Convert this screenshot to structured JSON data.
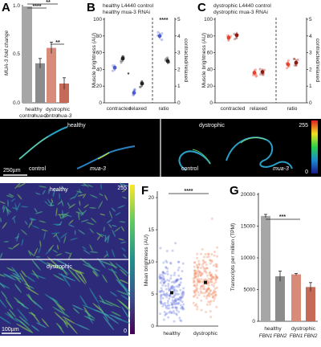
{
  "panels": {
    "A": {
      "label": "A",
      "ylabel": "MUA-3 fold change",
      "yticks": [
        "0.0",
        "0.5",
        "1.0"
      ],
      "groups": [
        "healthy",
        "dystrophic"
      ],
      "conditions": [
        "control",
        "mua-3",
        "control",
        "mua-3"
      ],
      "sig": [
        "****",
        "**",
        "**"
      ],
      "chart_data": {
        "type": "bar",
        "categories": [
          "healthy control",
          "healthy mua-3",
          "dystrophic control",
          "dystrophic mua-3"
        ],
        "values": [
          1.0,
          0.41,
          0.57,
          0.2
        ],
        "errors": [
          0.0,
          0.05,
          0.06,
          0.06
        ],
        "ylim": [
          0,
          1.0
        ],
        "colors": [
          "#a6a6a6",
          "#8c8c8c",
          "#d98b7a",
          "#c56a56"
        ]
      }
    },
    "B": {
      "label": "B",
      "legend": [
        "healthy L4440 control",
        "healthy mua-3 RNAi"
      ],
      "legend_colors": [
        "#4a5bd0",
        "#222222"
      ],
      "ylabel_left": "Muscle brightness (AU)",
      "ylabel_right": "contracted/relaxed",
      "yticks_left": [
        "0",
        "20",
        "40",
        "60",
        "80",
        "100"
      ],
      "yticks_right": [
        "0",
        "1",
        "2",
        "3",
        "4",
        "5"
      ],
      "xcats": [
        "contracted",
        "relaxed",
        "ratio"
      ],
      "sig": [
        "*",
        "****"
      ],
      "chart_data": {
        "type": "scatter",
        "series": [
          {
            "name": "healthy L4440 control",
            "values": [
              42,
              12,
              4.0
            ]
          },
          {
            "name": "healthy mua-3 RNAi",
            "values": [
              53,
              23,
              2.5
            ]
          }
        ]
      }
    },
    "C": {
      "label": "C",
      "legend": [
        "dystrophic L4440 control",
        "dystrophic mua-3 RNAi"
      ],
      "legend_colors": [
        "#e8402a",
        "#8b1a10"
      ],
      "ylabel_left": "Muscle brightness (AU)",
      "ylabel_right": "contracted/relaxed",
      "yticks_left": [
        "0",
        "20",
        "40",
        "60",
        "80",
        "100"
      ],
      "yticks_right": [
        "0",
        "1",
        "2",
        "3",
        "4",
        "5"
      ],
      "xcats": [
        "contracted",
        "relaxed",
        "ratio"
      ],
      "chart_data": {
        "type": "scatter",
        "series": [
          {
            "name": "dystrophic L4440 control",
            "values": [
              78,
              36,
              2.3
            ]
          },
          {
            "name": "dystrophic mua-3 RNAi",
            "values": [
              81,
              37,
              2.4
            ]
          }
        ]
      }
    },
    "D": {
      "label": "D",
      "tag_left": "healthy",
      "tag_right": "dystrophic",
      "sub1": "control",
      "sub2": "mua-3",
      "sub3": "control",
      "sub4": "mua-3",
      "scalebar": "250µm",
      "cbar_max": "255",
      "cbar_min": "0"
    },
    "E": {
      "label": "E",
      "tag_top": "healthy",
      "tag_bottom": "dystrophic",
      "scalebar": "100µm",
      "cbar_max": "255",
      "cbar_min": "0"
    },
    "F": {
      "label": "F",
      "ylabel": "Mean brightness (AU)",
      "yticks": [
        "0",
        "5",
        "10",
        "15",
        "20"
      ],
      "xcats": [
        "healthy",
        "dystrophic"
      ],
      "sig": "****",
      "chart_data": {
        "type": "scatter",
        "categories": [
          "healthy",
          "dystrophic"
        ],
        "values": [
          5.2,
          6.8
        ],
        "ylim": [
          0,
          20
        ]
      }
    },
    "G": {
      "label": "G",
      "ylabel": "Transcripts per million (TPM)",
      "yticks": [
        "0",
        "5000",
        "10000",
        "15000",
        "20000"
      ],
      "groups": [
        "healthy",
        "dystrophic"
      ],
      "genes": [
        "FBN1",
        "FBN2",
        "FBN1",
        "FBN2"
      ],
      "sig": "***",
      "chart_data": {
        "type": "bar",
        "categories": [
          "healthy FBN1",
          "healthy FBN2",
          "dystrophic FBN1",
          "dystrophic FBN2"
        ],
        "values": [
          16600,
          7100,
          7400,
          5400
        ],
        "errors": [
          250,
          800,
          150,
          700
        ],
        "ylim": [
          0,
          20000
        ],
        "colors": [
          "#a6a6a6",
          "#8c8c8c",
          "#d98b7a",
          "#c56a56"
        ]
      }
    }
  }
}
